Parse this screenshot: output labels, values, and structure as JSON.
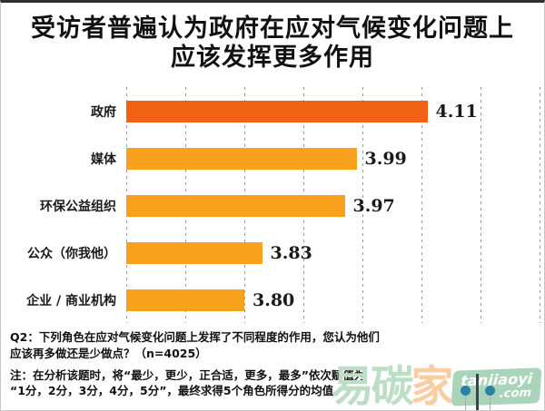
{
  "title": {
    "line1": "受访者普遍认为政府在应对气候变化问题上",
    "line2": "应该发挥更多作用"
  },
  "chart_data": {
    "type": "bar",
    "orientation": "horizontal",
    "categories": [
      "政府",
      "媒体",
      "环保公益组织",
      "公众（你我他）",
      "企业 / 商业机构"
    ],
    "values": [
      4.11,
      3.99,
      3.97,
      3.83,
      3.8
    ],
    "value_labels": [
      "4.11",
      "3.99",
      "3.97",
      "3.83",
      "3.80"
    ],
    "title": "受访者普遍认为政府在应对气候变化问题上应该发挥更多作用",
    "xlabel": "",
    "ylabel": "",
    "xlim": [
      3.6,
      4.3
    ],
    "grid_step": 0.1,
    "grid": "vertical-dashed",
    "legend": "none",
    "highlight_index": 0,
    "colors": {
      "highlight_bar": "#EE6211",
      "normal_bar": "#F9A11D",
      "gridline": "#999999"
    }
  },
  "notes": {
    "q2_line1": "Q2：下列角色在应对气候变化问题上发挥了不同程度的作用，您认为他们",
    "q2_line2": "应该再多做还是少做点？（n=4025）",
    "note_line1": "注：在分析该题时，将“最少，更少，正合适，更多，最多”依次赋值为",
    "note_line2": "“1分，2分，3分，4分，5分”，最终求得5个角色所得分的均值。"
  },
  "watermark": {
    "char1": "易",
    "char2": "碳",
    "char3": "家",
    "badge_line1": "tanjiaoyi",
    "badge_line2": ".com",
    "colors": {
      "green_text": "#bcdec7",
      "peach_text": "#f8cda2",
      "badge_bg": "#a9d4ba",
      "pin": "#2a80a6"
    }
  }
}
